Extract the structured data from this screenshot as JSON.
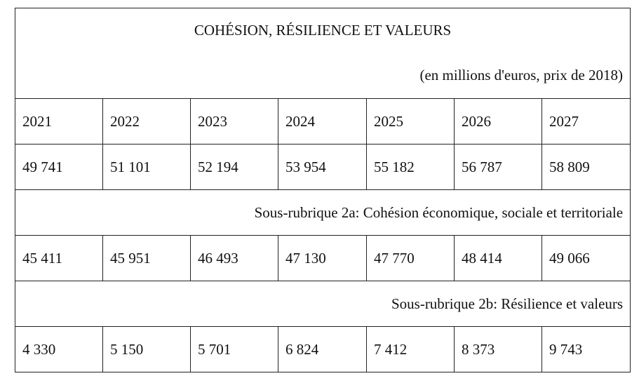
{
  "table": {
    "title": "COHÉSION, RÉSILIENCE ET VALEURS",
    "unit": "(en millions d'euros, prix de 2018)",
    "years": [
      "2021",
      "2022",
      "2023",
      "2024",
      "2025",
      "2026",
      "2027"
    ],
    "totals": [
      "49 741",
      "51 101",
      "52 194",
      "53 954",
      "55 182",
      "56 787",
      "58 809"
    ],
    "subheadings": [
      {
        "label": "Sous-rubrique 2a: Cohésion économique, sociale et territoriale",
        "values": [
          "45 411",
          "45 951",
          "46 493",
          "47 130",
          "47 770",
          "48 414",
          "49 066"
        ]
      },
      {
        "label": "Sous-rubrique 2b: Résilience et valeurs",
        "values": [
          "4 330",
          "5 150",
          "5 701",
          "6 824",
          "7 412",
          "8 373",
          "9 743"
        ]
      }
    ]
  }
}
